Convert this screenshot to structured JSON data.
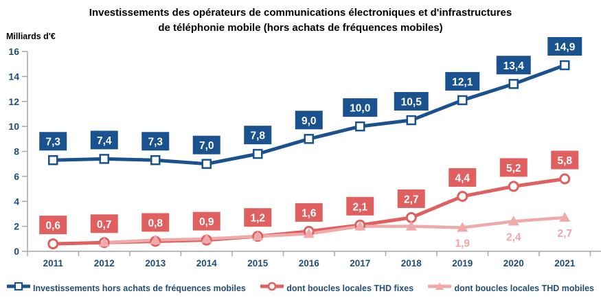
{
  "chart_data": {
    "type": "line",
    "title_line1": "Investissements des opérateurs de communications électroniques et d'infrastructures",
    "title_line2": "de téléphonie mobile (hors achats de fréquences mobiles)",
    "ylabel": "Milliards d'€",
    "ylim": [
      0,
      16
    ],
    "ytick_step": 2,
    "grid": false,
    "legend_position": "bottom",
    "axis_color": "#a6a6a6",
    "text_color": "#1f4e79",
    "categories": [
      "2011",
      "2012",
      "2013",
      "2014",
      "2015",
      "2016",
      "2017",
      "2018",
      "2019",
      "2020",
      "2021"
    ],
    "series": [
      {
        "name": "Investissements hors achats de fréquences mobiles",
        "marker": "square",
        "color": "#1a518f",
        "label_style": "box",
        "label_text_color": "#ffffff",
        "values": [
          7.3,
          7.4,
          7.3,
          7.0,
          7.8,
          9.0,
          10.0,
          10.5,
          12.1,
          13.4,
          14.9
        ],
        "labels": [
          "7,3",
          "7,4",
          "7,3",
          "7,0",
          "7,8",
          "9,0",
          "10,0",
          "10,5",
          "12,1",
          "13,4",
          "14,9"
        ]
      },
      {
        "name": "dont boucles locales THD fixes",
        "marker": "circle",
        "color": "#e06060",
        "label_style": "box",
        "label_text_color": "#ffffff",
        "values": [
          0.6,
          0.7,
          0.8,
          0.9,
          1.2,
          1.6,
          2.1,
          2.7,
          4.4,
          5.2,
          5.8
        ],
        "labels": [
          "0,6",
          "0,7",
          "0,8",
          "0,9",
          "1,2",
          "1,6",
          "2,1",
          "2,7",
          "4,4",
          "5,2",
          "5,8"
        ]
      },
      {
        "name": "dont boucles locales THD mobiles",
        "marker": "triangle",
        "color": "#f0a9a9",
        "label_style": "text-below",
        "label_text_color": "#f2a5a5",
        "values": [
          null,
          0.7,
          0.9,
          1.0,
          1.2,
          1.4,
          2.0,
          2.0,
          1.9,
          2.4,
          2.7
        ],
        "labels": [
          null,
          null,
          null,
          null,
          null,
          null,
          null,
          null,
          "1,9",
          "2,4",
          "2,7"
        ]
      }
    ]
  }
}
